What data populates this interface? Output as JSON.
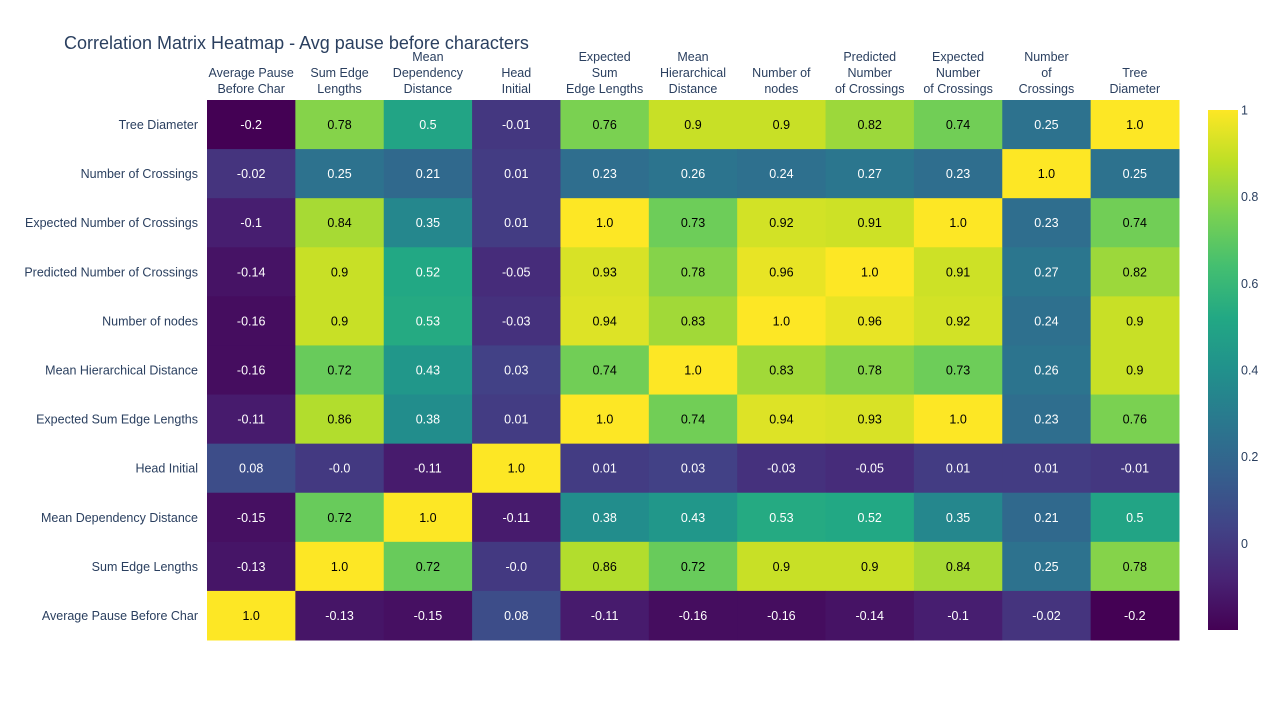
{
  "chart_data": {
    "type": "heatmap",
    "title": "Correlation Matrix Heatmap - Avg pause before characters",
    "x_labels": [
      "Average Pause\nBefore Char",
      "Sum Edge\nLengths",
      "Mean\nDependency\nDistance",
      "Head\nInitial",
      "Expected\nSum\nEdge Lengths",
      "Mean\nHierarchical\nDistance",
      "Number of\nnodes",
      "Predicted\nNumber\nof Crossings",
      "Expected\nNumber\nof Crossings",
      "Number\nof\nCrossings",
      "Tree\nDiameter"
    ],
    "y_labels": [
      "Tree Diameter",
      "Number of Crossings",
      "Expected Number of Crossings",
      "Predicted Number of Crossings",
      "Number of nodes",
      "Mean Hierarchical Distance",
      "Expected Sum Edge Lengths",
      "Head Initial",
      "Mean Dependency Distance",
      "Sum Edge Lengths",
      "Average Pause Before Char"
    ],
    "z": [
      [
        "-0.2",
        "0.78",
        "0.5",
        "-0.01",
        "0.76",
        "0.9",
        "0.9",
        "0.82",
        "0.74",
        "0.25",
        "1.0"
      ],
      [
        "-0.02",
        "0.25",
        "0.21",
        "0.01",
        "0.23",
        "0.26",
        "0.24",
        "0.27",
        "0.23",
        "1.0",
        "0.25"
      ],
      [
        "-0.1",
        "0.84",
        "0.35",
        "0.01",
        "1.0",
        "0.73",
        "0.92",
        "0.91",
        "1.0",
        "0.23",
        "0.74"
      ],
      [
        "-0.14",
        "0.9",
        "0.52",
        "-0.05",
        "0.93",
        "0.78",
        "0.96",
        "1.0",
        "0.91",
        "0.27",
        "0.82"
      ],
      [
        "-0.16",
        "0.9",
        "0.53",
        "-0.03",
        "0.94",
        "0.83",
        "1.0",
        "0.96",
        "0.92",
        "0.24",
        "0.9"
      ],
      [
        "-0.16",
        "0.72",
        "0.43",
        "0.03",
        "0.74",
        "1.0",
        "0.83",
        "0.78",
        "0.73",
        "0.26",
        "0.9"
      ],
      [
        "-0.11",
        "0.86",
        "0.38",
        "0.01",
        "1.0",
        "0.74",
        "0.94",
        "0.93",
        "1.0",
        "0.23",
        "0.76"
      ],
      [
        "0.08",
        "-0.0",
        "-0.11",
        "1.0",
        "0.01",
        "0.03",
        "-0.03",
        "-0.05",
        "0.01",
        "0.01",
        "-0.01"
      ],
      [
        "-0.15",
        "0.72",
        "1.0",
        "-0.11",
        "0.38",
        "0.43",
        "0.53",
        "0.52",
        "0.35",
        "0.21",
        "0.5"
      ],
      [
        "-0.13",
        "1.0",
        "0.72",
        "-0.0",
        "0.86",
        "0.72",
        "0.9",
        "0.9",
        "0.84",
        "0.25",
        "0.78"
      ],
      [
        "1.0",
        "-0.13",
        "-0.15",
        "0.08",
        "-0.11",
        "-0.16",
        "-0.16",
        "-0.14",
        "-0.1",
        "-0.02",
        "-0.2"
      ]
    ],
    "colorscale": "Viridis",
    "zmin": -0.2,
    "zmax": 1.0,
    "colorbar": {
      "ticks": [
        0,
        0.2,
        0.4,
        0.6,
        0.8,
        1
      ],
      "tick_labels": [
        "0",
        "0.2",
        "0.4",
        "0.6",
        "0.8",
        "1"
      ]
    },
    "x_axis_side": "top",
    "grid": false
  }
}
